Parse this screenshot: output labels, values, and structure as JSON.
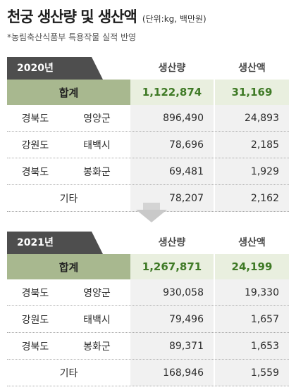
{
  "title": {
    "main": "천궁 생산량 및 생산액",
    "unit": "(단위:kg, 백만원)"
  },
  "note": "*농림축산식품부 특용작물 실적 반영",
  "columns": {
    "quantity": "생산량",
    "value": "생산액"
  },
  "tables": [
    {
      "year": "2020년",
      "total": {
        "label": "합계",
        "quantity": "1,122,874",
        "value": "31,169"
      },
      "rows": [
        {
          "province": "경북도",
          "city": "영양군",
          "quantity": "896,490",
          "value": "24,893"
        },
        {
          "province": "강원도",
          "city": "태백시",
          "quantity": "78,696",
          "value": "2,185"
        },
        {
          "province": "경북도",
          "city": "봉화군",
          "quantity": "69,481",
          "value": "1,929"
        }
      ],
      "other": {
        "label": "기타",
        "quantity": "78,207",
        "value": "2,162"
      }
    },
    {
      "year": "2021년",
      "total": {
        "label": "합계",
        "quantity": "1,267,871",
        "value": "24,199"
      },
      "rows": [
        {
          "province": "경북도",
          "city": "영양군",
          "quantity": "930,058",
          "value": "19,330"
        },
        {
          "province": "강원도",
          "city": "태백시",
          "quantity": "79,496",
          "value": "1,657"
        },
        {
          "province": "경북도",
          "city": "봉화군",
          "quantity": "89,371",
          "value": "1,653"
        }
      ],
      "other": {
        "label": "기타",
        "quantity": "168,946",
        "value": "1,559"
      }
    }
  ],
  "colors": {
    "year_tab": "#4e4e4e",
    "total_label_bg": "#a8b88f",
    "total_value_bg": "#e9efdf",
    "total_value_text": "#3f7a26"
  }
}
